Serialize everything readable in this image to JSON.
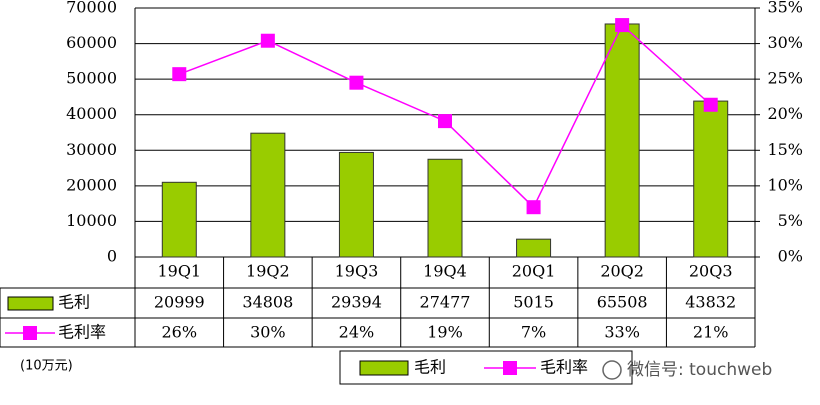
{
  "chart_data": {
    "type": "bar-line",
    "categories": [
      "19Q1",
      "19Q2",
      "19Q3",
      "19Q4",
      "20Q1",
      "20Q2",
      "20Q3"
    ],
    "series": [
      {
        "name": "毛利",
        "type": "bar",
        "color": "#99cc00",
        "values": [
          20999,
          34808,
          29394,
          27477,
          5015,
          65508,
          43832
        ]
      },
      {
        "name": "毛利率",
        "type": "line",
        "axis": "y2",
        "color": "#ff00ff",
        "values": [
          25.7,
          30.4,
          24.5,
          19.1,
          7.0,
          32.6,
          21.4
        ],
        "value_labels": [
          "26%",
          "30%",
          "24%",
          "19%",
          "7%",
          "33%",
          "21%"
        ]
      }
    ],
    "ylim": [
      0,
      70000
    ],
    "yticks": [
      0,
      10000,
      20000,
      30000,
      40000,
      50000,
      60000,
      70000
    ],
    "y2lim": [
      0,
      35
    ],
    "y2ticks": [
      {
        "value": 0,
        "label": "0%"
      },
      {
        "value": 5,
        "label": "5%"
      },
      {
        "value": 10,
        "label": "10%"
      },
      {
        "value": 15,
        "label": "15%"
      },
      {
        "value": 20,
        "label": "20%"
      },
      {
        "value": 25,
        "label": "25%"
      },
      {
        "value": 30,
        "label": "30%"
      },
      {
        "value": 35,
        "label": "35%"
      }
    ],
    "grid": true,
    "unit_note": "(10万元)",
    "watermark": "微信号: touchweb"
  }
}
